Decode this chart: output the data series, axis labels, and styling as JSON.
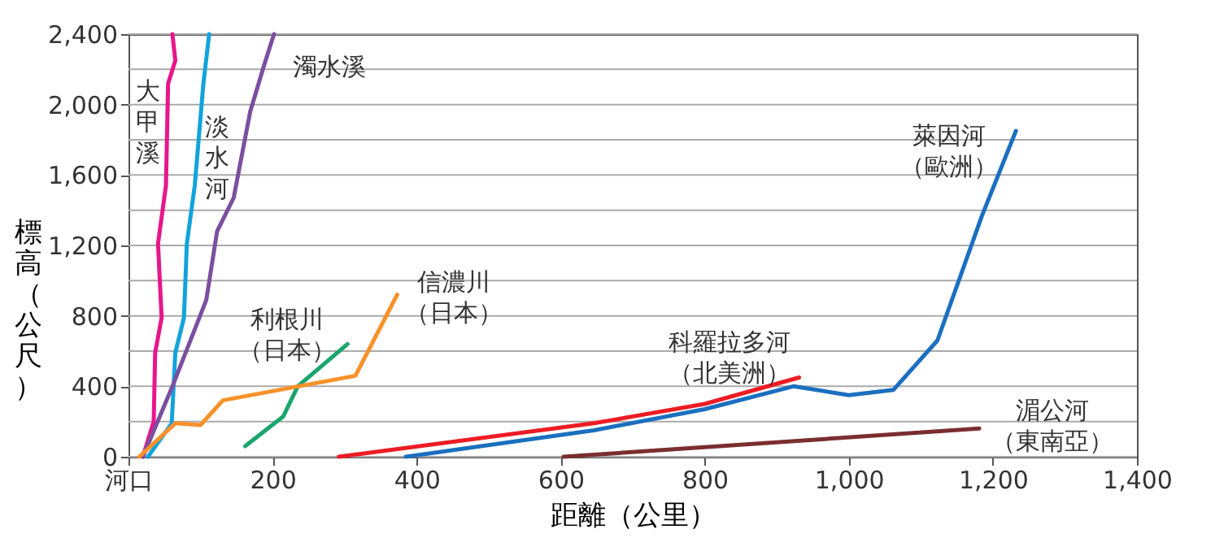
{
  "chart_data": {
    "type": "line",
    "xlabel": "距離（公里）",
    "ylabel": "標高（公尺）",
    "xlim": [
      0,
      1400
    ],
    "ylim": [
      0,
      2400
    ],
    "xticks": [
      {
        "value": 0,
        "label": "河口"
      },
      200,
      400,
      600,
      800,
      {
        "value": 1000,
        "label": "1,000"
      },
      {
        "value": 1200,
        "label": "1,200"
      },
      {
        "value": 1400,
        "label": "1,400"
      }
    ],
    "yticks": [
      0,
      {
        "value": 200,
        "label": null
      },
      400,
      {
        "value": 600,
        "label": null
      },
      800,
      {
        "value": 1000,
        "label": null
      },
      {
        "value": 1200,
        "label": "1,200"
      },
      {
        "value": 1400,
        "label": null
      },
      {
        "value": 1600,
        "label": "1,600"
      },
      {
        "value": 1800,
        "label": null
      },
      {
        "value": 2000,
        "label": "2,000"
      },
      {
        "value": 2200,
        "label": null
      },
      {
        "value": 2400,
        "label": "2,400"
      }
    ],
    "grid": "y",
    "legend": false,
    "line_style": "solid",
    "marker": "none",
    "series": [
      {
        "name": "大甲溪",
        "color": "#e8168c",
        "x": [
          20,
          35,
          37,
          46,
          41,
          52,
          55,
          65,
          61
        ],
        "values": [
          0,
          200,
          590,
          790,
          1210,
          1540,
          2120,
          2250,
          2400
        ]
      },
      {
        "name": "淡水河",
        "color": "#13a3dc",
        "x": [
          27,
          60,
          65,
          77,
          81,
          92,
          104,
          112
        ],
        "values": [
          0,
          190,
          590,
          790,
          1210,
          1540,
          2120,
          2400
        ]
      },
      {
        "name": "濁水溪",
        "color": "#7b4fa0",
        "x": [
          20,
          61,
          108,
          123,
          146,
          169,
          188,
          202
        ],
        "values": [
          0,
          400,
          890,
          1280,
          1470,
          1960,
          2220,
          2400
        ]
      },
      {
        "name": "利根川（日本）",
        "color": "#1aa56e",
        "x": [
          162,
          215,
          235,
          304
        ],
        "values": [
          60,
          230,
          400,
          640
        ]
      },
      {
        "name": "信濃川（日本）",
        "color": "#f7922a",
        "x": [
          15,
          65,
          100,
          131,
          315,
          373
        ],
        "values": [
          0,
          190,
          180,
          320,
          460,
          920
        ]
      },
      {
        "name": "科羅拉多河（北美洲）",
        "color": "#ed1c24",
        "x": [
          292,
          646,
          800,
          931
        ],
        "values": [
          0,
          190,
          300,
          450
        ]
      },
      {
        "name": "萊因河（歐洲）",
        "color": "#1b6fbf",
        "x": [
          385,
          646,
          800,
          923,
          1000,
          1062,
          1123,
          1185,
          1232
        ],
        "values": [
          0,
          150,
          270,
          400,
          350,
          380,
          660,
          1370,
          1850
        ]
      },
      {
        "name": "湄公河（東南亞）",
        "color": "#7a2e2e",
        "x": [
          604,
          1181
        ],
        "values": [
          0,
          160
        ]
      }
    ]
  }
}
